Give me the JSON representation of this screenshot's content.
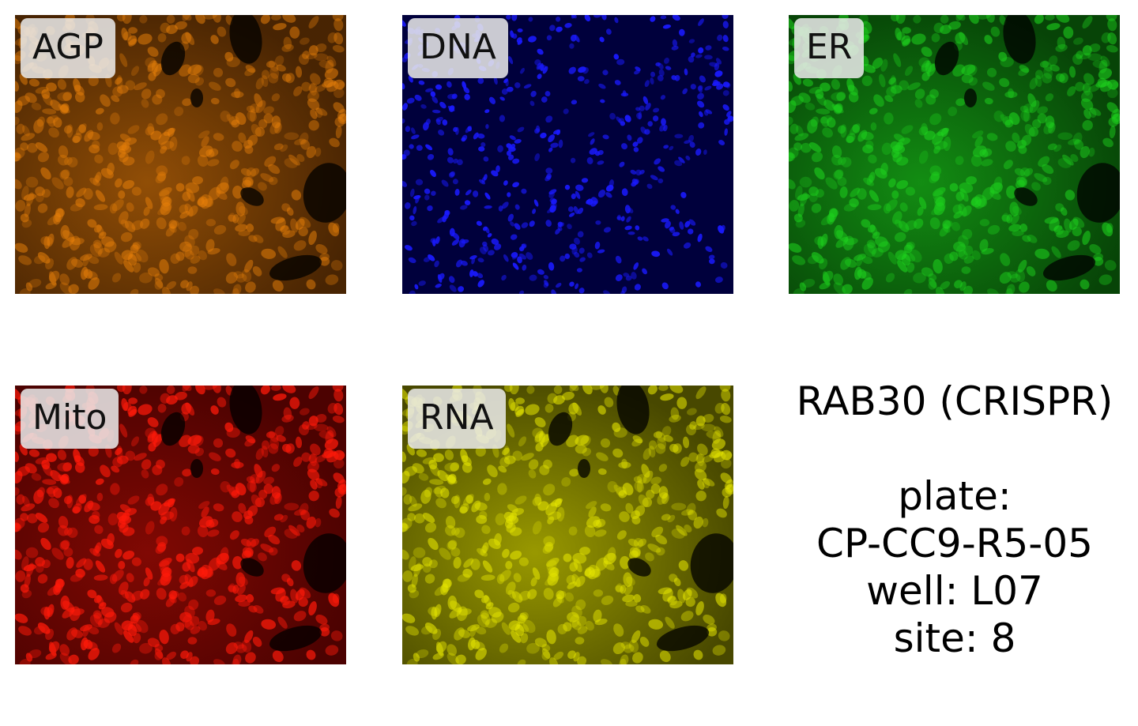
{
  "panels": [
    {
      "id": "agp",
      "label": "AGP",
      "channel_color": "#e8800a",
      "background": "#3a1c02"
    },
    {
      "id": "dna",
      "label": "DNA",
      "channel_color": "#1a1aff",
      "background": "#00003c"
    },
    {
      "id": "er",
      "label": "ER",
      "channel_color": "#1ed21e",
      "background": "#053805"
    },
    {
      "id": "mito",
      "label": "Mito",
      "channel_color": "#ff1a0a",
      "background": "#3c0000"
    },
    {
      "id": "rna",
      "label": "RNA",
      "channel_color": "#e6e600",
      "background": "#3a3a00"
    }
  ],
  "info": {
    "title": "RAB30 (CRISPR)",
    "plate_label": "plate:",
    "plate": "CP-CC9-R5-05",
    "well": "well: L07",
    "site": "site: 8"
  }
}
